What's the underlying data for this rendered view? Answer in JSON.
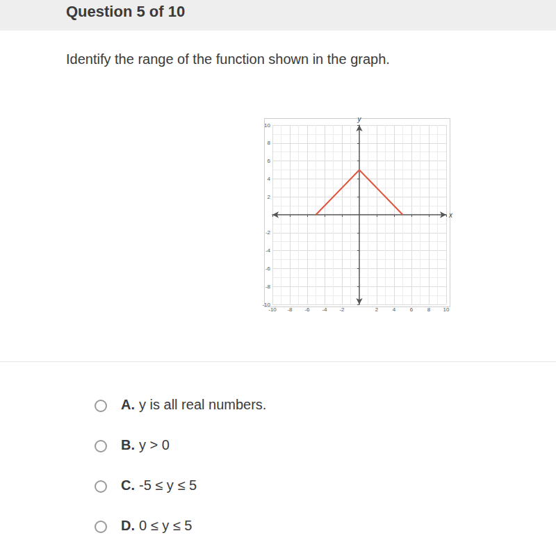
{
  "header": {
    "title": "Question 5 of 10"
  },
  "question": "Identify the range of the function shown in the graph.",
  "chart_data": {
    "type": "line",
    "xlabel": "x",
    "ylabel": "y",
    "x": [
      -5,
      0,
      5
    ],
    "values": [
      0,
      5,
      0
    ],
    "color": "#e0533d",
    "xlim": [
      -10,
      10
    ],
    "xticks": [
      -10,
      -8,
      -6,
      -4,
      -2,
      2,
      4,
      6,
      8,
      10
    ],
    "ylim": [
      -10,
      10
    ],
    "yticks": [
      -10,
      -8,
      -6,
      -4,
      -2,
      2,
      4,
      6,
      8,
      10
    ],
    "grid": true
  },
  "options": [
    {
      "letter": "A.",
      "text": "y is all real numbers."
    },
    {
      "letter": "B.",
      "text": "y > 0"
    },
    {
      "letter": "C.",
      "text": "-5 ≤ y ≤ 5"
    },
    {
      "letter": "D.",
      "text": "0 ≤ y ≤ 5"
    }
  ]
}
